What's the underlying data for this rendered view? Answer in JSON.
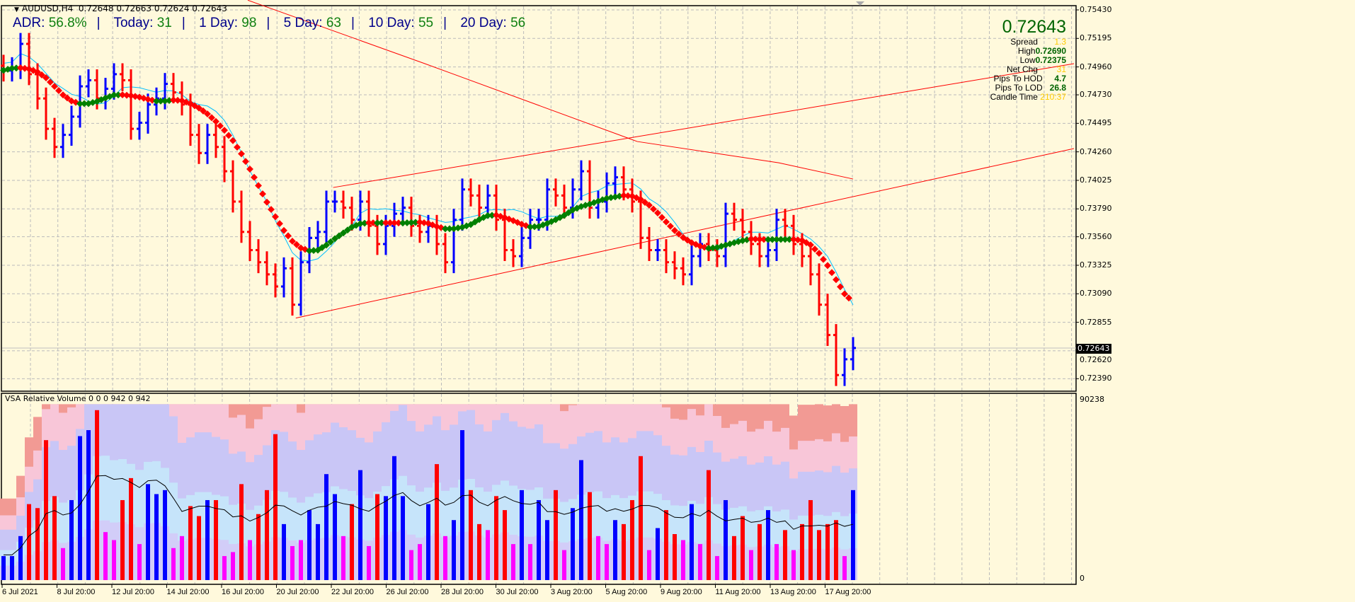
{
  "header": {
    "symbol": "AUDUSD,H4",
    "open": "0.72648",
    "high": "0.72663",
    "low": "0.72624",
    "close": "0.72643"
  },
  "adr": {
    "adr_label": "ADR:",
    "adr_value": "56.8%",
    "today_label": "Today:",
    "today_value": "31",
    "d1_label": "1 Day:",
    "d1_value": "98",
    "d5_label": "5 Day:",
    "d5_value": "63",
    "d10_label": "10 Day:",
    "d10_value": "55",
    "d20_label": "20 Day:",
    "d20_value": "56",
    "separator": "|"
  },
  "info": {
    "price": "0.72643",
    "spread_label": "Spread",
    "spread": "1.3",
    "high_label": "High",
    "high": "0.72690",
    "low_label": "Low",
    "low": "0.72375",
    "netchg_label": "Net Chg",
    "netchg": "31",
    "hod_label": "Pips To HOD",
    "hod": "4.7",
    "lod_label": "Pips To LOD",
    "lod": "26.8",
    "candle_label": "Candle Time",
    "candle": "210:37"
  },
  "volume_pane": {
    "title": "VSA Relative Volume 0 0 0 942 0 942",
    "max_label": "90238",
    "min_label": "0"
  },
  "colors": {
    "background": "#fff9dc",
    "bull": "#0000ff",
    "bear": "#ff0000",
    "ma_up": "#008000",
    "ma_down": "#ff0000",
    "ma_fast": "#00bfff",
    "ma_slow": "#ff0000",
    "channel": "#ff0000",
    "low_volume": "#ff00ff"
  },
  "chart_data": {
    "type": "ohlc-bar",
    "current_price": "0.72643",
    "y_ticks": [
      "0.75430",
      "0.75195",
      "0.74960",
      "0.74730",
      "0.74495",
      "0.74260",
      "0.74025",
      "0.73790",
      "0.73560",
      "0.73325",
      "0.73090",
      "0.72855",
      "0.72620",
      "0.72390"
    ],
    "x_labels": [
      "6 Jul 2021",
      "8 Jul 20:00",
      "12 Jul 20:00",
      "14 Jul 20:00",
      "16 Jul 20:00",
      "20 Jul 20:00",
      "22 Jul 20:00",
      "26 Jul 20:00",
      "28 Jul 20:00",
      "30 Jul 20:00",
      "3 Aug 20:00",
      "5 Aug 20:00",
      "9 Aug 20:00",
      "11 Aug 20:00",
      "13 Aug 20:00",
      "17 Aug 20:00"
    ],
    "ylim": [
      0.7234,
      0.7546
    ],
    "close": [
      0.7493,
      0.7495,
      0.7515,
      0.749,
      0.747,
      0.7445,
      0.743,
      0.744,
      0.7455,
      0.748,
      0.7485,
      0.747,
      0.7478,
      0.749,
      0.7485,
      0.7445,
      0.745,
      0.7465,
      0.747,
      0.7482,
      0.7475,
      0.7465,
      0.744,
      0.7425,
      0.744,
      0.743,
      0.741,
      0.7385,
      0.736,
      0.7345,
      0.7335,
      0.7325,
      0.7315,
      0.733,
      0.73,
      0.7335,
      0.7355,
      0.736,
      0.7385,
      0.7385,
      0.738,
      0.737,
      0.7385,
      0.7365,
      0.735,
      0.7365,
      0.7375,
      0.738,
      0.7365,
      0.736,
      0.7365,
      0.735,
      0.7335,
      0.737,
      0.7395,
      0.739,
      0.738,
      0.739,
      0.737,
      0.7345,
      0.734,
      0.7355,
      0.737,
      0.737,
      0.7395,
      0.739,
      0.738,
      0.7395,
      0.741,
      0.738,
      0.7385,
      0.74,
      0.7405,
      0.7395,
      0.7385,
      0.7355,
      0.7345,
      0.7345,
      0.7335,
      0.733,
      0.7325,
      0.734,
      0.735,
      0.7345,
      0.734,
      0.7375,
      0.737,
      0.736,
      0.735,
      0.734,
      0.7345,
      0.737,
      0.7365,
      0.735,
      0.734,
      0.7325,
      0.73,
      0.7275,
      0.7242,
      0.7255,
      0.72643
    ],
    "volume": [
      12000,
      12000,
      22000,
      38000,
      36000,
      70000,
      42000,
      16000,
      40000,
      72000,
      75000,
      85000,
      24000,
      20000,
      40000,
      51000,
      18000,
      48000,
      43000,
      45000,
      16000,
      22000,
      37000,
      32000,
      40000,
      40000,
      12000,
      14000,
      48000,
      20000,
      33000,
      45000,
      73000,
      28000,
      17000,
      20000,
      35000,
      28000,
      53000,
      43000,
      22000,
      38000,
      55000,
      17000,
      43000,
      42000,
      62000,
      42000,
      15000,
      18000,
      38000,
      58000,
      22000,
      30000,
      75000,
      45000,
      28000,
      25000,
      42000,
      35000,
      18000,
      45000,
      18000,
      40000,
      30000,
      45000,
      15000,
      36000,
      60000,
      44000,
      22000,
      18000,
      30000,
      28000,
      40000,
      62000,
      15000,
      26000,
      35000,
      23000,
      20000,
      38000,
      18000,
      55000,
      12000,
      40000,
      22000,
      32000,
      15000,
      28000,
      35000,
      18000,
      25000,
      15000,
      28000,
      40000,
      25000,
      28000,
      30000,
      12000,
      45000
    ],
    "volume_ylim": [
      0,
      90238
    ],
    "ma_slow": [
      [
        28.75,
        0.7551
      ],
      [
        49.6,
        0.74987
      ],
      [
        74.6,
        0.74345
      ],
      [
        91.25,
        0.7417
      ],
      [
        100,
        0.74036
      ]
    ],
    "channel_lower": [
      [
        34.4,
        0.7289
      ],
      [
        126,
        0.74287
      ]
    ],
    "channel_upper": [
      [
        38.8,
        0.73966
      ],
      [
        126,
        0.74987
      ]
    ]
  }
}
